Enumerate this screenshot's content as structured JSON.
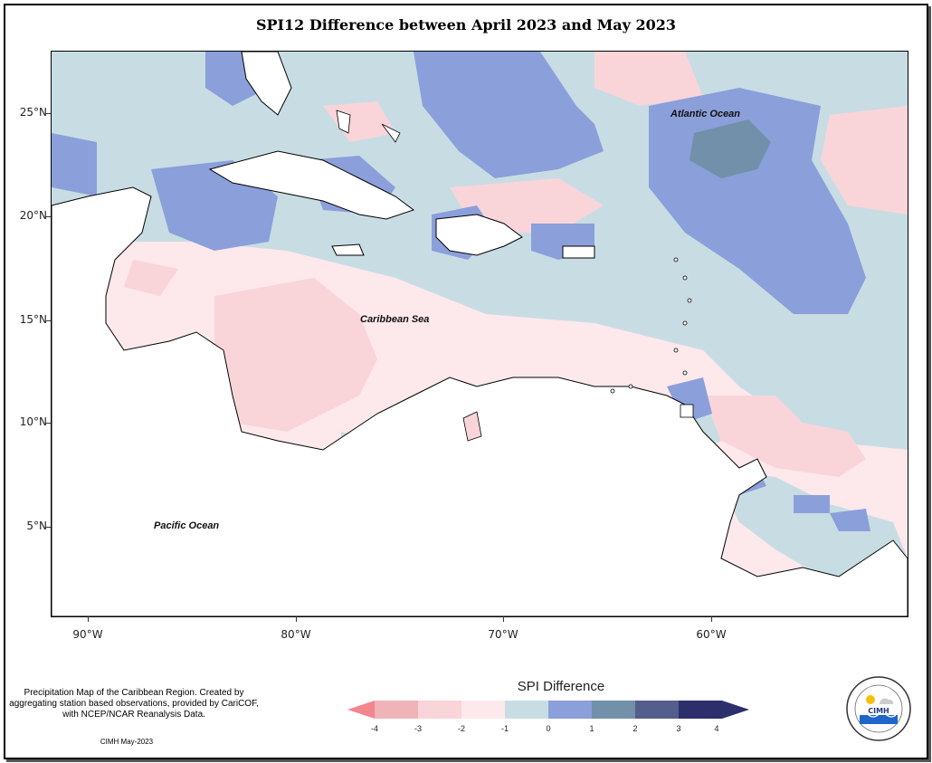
{
  "title": "SPI12 Difference between April 2023 and May 2023",
  "axes": {
    "lat_labels": [
      "25°N",
      "20°N",
      "15°N",
      "10°N",
      "5°N"
    ],
    "lon_labels": [
      "90°W",
      "80°W",
      "70°W",
      "60°W"
    ]
  },
  "places": {
    "atlantic": "Atlantic Ocean",
    "caribbean": "Caribbean Sea",
    "pacific": "Pacific Ocean"
  },
  "legend": {
    "title": "SPI Difference",
    "labels": [
      "-4",
      "-3",
      "-2",
      "-1",
      "0",
      "1",
      "2",
      "3",
      "4"
    ],
    "colors": {
      "neg4": "#f2858f",
      "neg3": "#f0b4b8",
      "neg2": "#f9d5da",
      "neg1": "#fde8ec",
      "pos0": "#c8dde3",
      "pos1": "#8b9fdb",
      "pos2": "#7290a9",
      "pos3": "#535e8c",
      "pos4": "#2c2f6b"
    }
  },
  "note": "Precipitation Map of the Caribbean Region. Created by aggregating station based observations, provided by CariCOF, with NCEP/NCAR Reanalysis Data.",
  "credit": "CIMH May-2023",
  "logo": {
    "text": "CIMH",
    "icon": "cimh-logo-seal"
  }
}
